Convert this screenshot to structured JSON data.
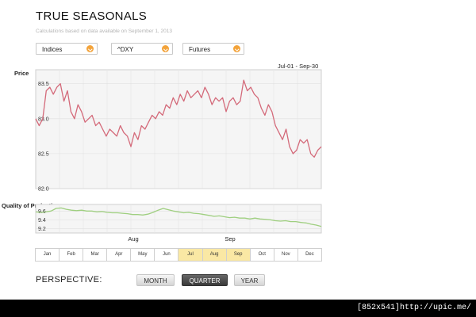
{
  "header": {
    "title": "TRUE SEASONALS",
    "subtitle": "Calculations based on data available on September 1, 2013"
  },
  "selectors": {
    "category": "Indices",
    "symbol": "^DXY",
    "type": "Futures",
    "arrow_color": "#f3a33a"
  },
  "date_range": "Jul-01 - Sep-30",
  "chart_data": [
    {
      "type": "line",
      "title": "",
      "ylabel": "Price",
      "ylim": [
        82.0,
        83.7
      ],
      "yticks": [
        "83.5",
        "83.0",
        "82.5",
        "82.0"
      ],
      "ytick_values": [
        83.5,
        83.0,
        82.5,
        82.0
      ],
      "grid": true,
      "series": [
        {
          "color": "#d46a7a",
          "values": [
            83.0,
            82.9,
            83.0,
            83.4,
            83.45,
            83.35,
            83.45,
            83.5,
            83.25,
            83.4,
            83.1,
            83.0,
            83.2,
            83.1,
            82.95,
            83.0,
            83.05,
            82.9,
            82.95,
            82.85,
            82.75,
            82.85,
            82.8,
            82.75,
            82.9,
            82.8,
            82.75,
            82.6,
            82.8,
            82.7,
            82.9,
            82.85,
            82.95,
            83.05,
            83.0,
            83.1,
            83.05,
            83.2,
            83.15,
            83.3,
            83.2,
            83.35,
            83.25,
            83.4,
            83.3,
            83.35,
            83.4,
            83.3,
            83.45,
            83.35,
            83.2,
            83.3,
            83.25,
            83.3,
            83.1,
            83.25,
            83.3,
            83.2,
            83.25,
            83.55,
            83.4,
            83.45,
            83.35,
            83.3,
            83.15,
            83.05,
            83.2,
            83.1,
            82.9,
            82.8,
            82.7,
            82.85,
            82.6,
            82.5,
            82.55,
            82.7,
            82.65,
            82.7,
            82.5,
            82.45,
            82.55,
            82.6
          ]
        }
      ]
    },
    {
      "type": "line",
      "ylabel": "Quality of Projection",
      "ylim": [
        9.1,
        9.75
      ],
      "yticks": [
        "9.6",
        "9.4",
        "9.2"
      ],
      "ytick_values": [
        9.6,
        9.4,
        9.2
      ],
      "x_labels": [
        "Aug",
        "Sep"
      ],
      "grid": true,
      "series": [
        {
          "color": "#9fcf80",
          "values": [
            9.58,
            9.57,
            9.58,
            9.6,
            9.66,
            9.67,
            9.64,
            9.62,
            9.61,
            9.62,
            9.6,
            9.6,
            9.58,
            9.59,
            9.57,
            9.56,
            9.56,
            9.55,
            9.54,
            9.52,
            9.52,
            9.51,
            9.53,
            9.57,
            9.62,
            9.66,
            9.63,
            9.6,
            9.58,
            9.56,
            9.57,
            9.55,
            9.54,
            9.52,
            9.5,
            9.48,
            9.49,
            9.47,
            9.45,
            9.46,
            9.44,
            9.44,
            9.42,
            9.44,
            9.42,
            9.41,
            9.4,
            9.38,
            9.37,
            9.38,
            9.36,
            9.36,
            9.34,
            9.33,
            9.3,
            9.28,
            9.25
          ]
        }
      ]
    }
  ],
  "months": [
    "Jan",
    "Feb",
    "Mar",
    "Apr",
    "May",
    "Jun",
    "Jul",
    "Aug",
    "Sep",
    "Oct",
    "Nov",
    "Dec"
  ],
  "selected_months": [
    "Jul",
    "Aug",
    "Sep"
  ],
  "selected_color": "#fae8a4",
  "perspective": {
    "label": "PERSPECTIVE:",
    "buttons": [
      "MONTH",
      "QUARTER",
      "YEAR"
    ],
    "active": "QUARTER"
  },
  "footer": "[852x541]http://upic.me/"
}
